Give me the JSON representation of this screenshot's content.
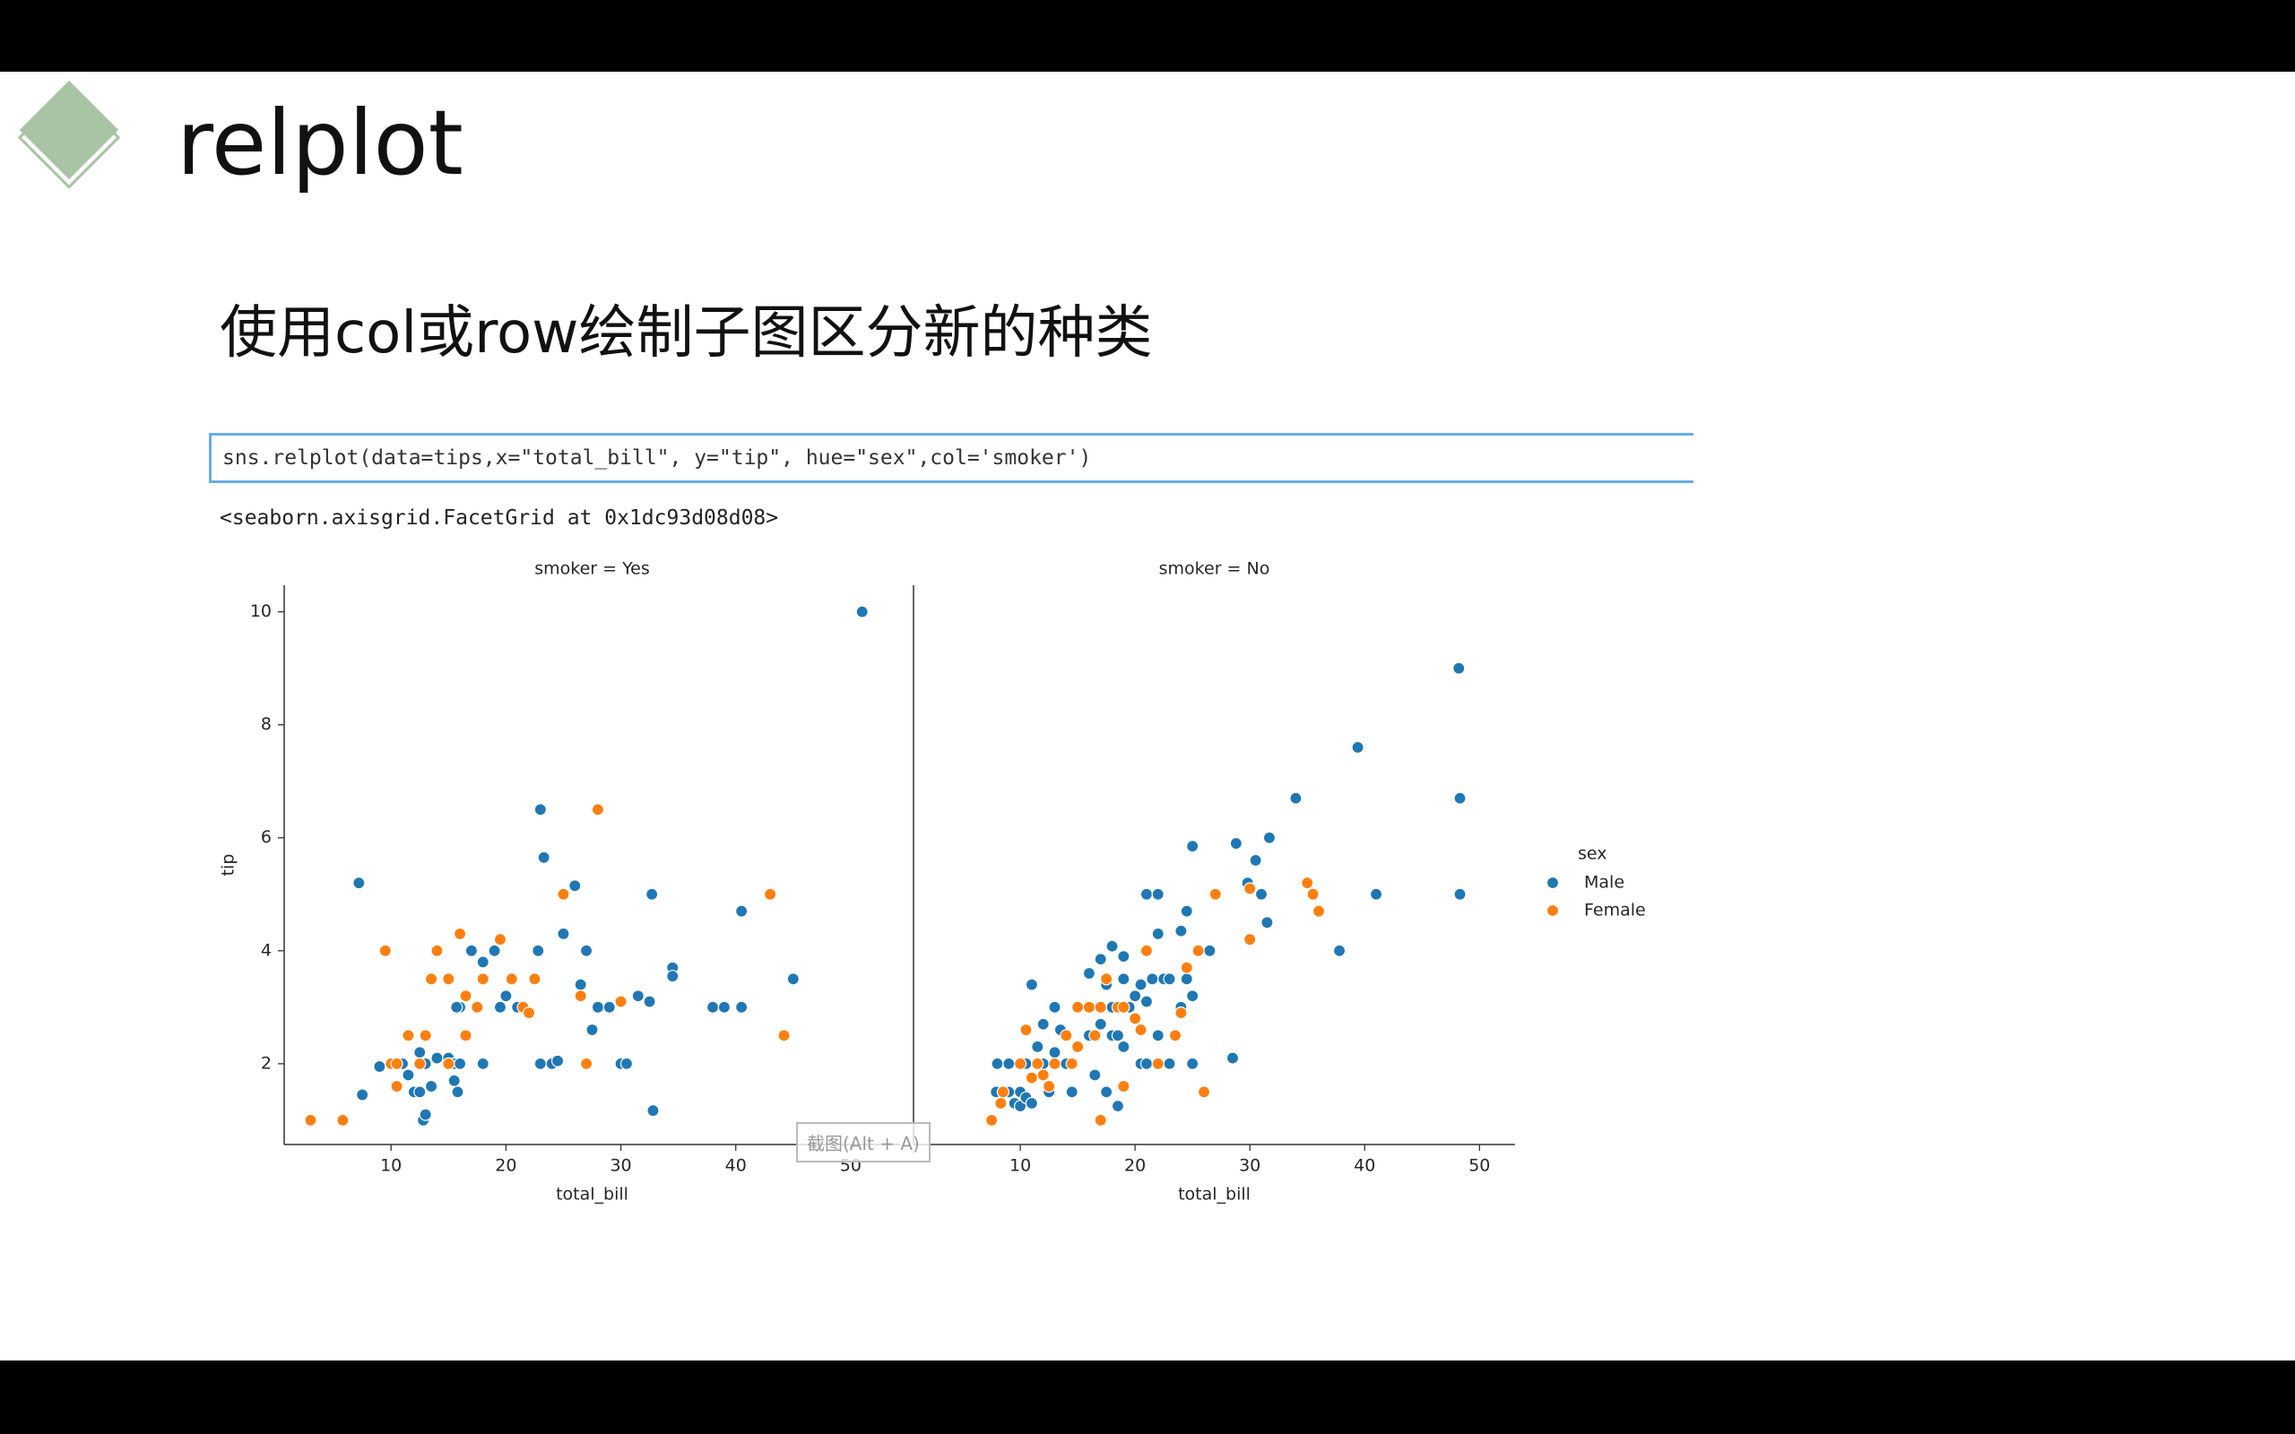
{
  "title": "relplot",
  "subtitle": "使用col或row绘制子图区分新的种类",
  "code": "sns.relplot(data=tips,x=\"total_bill\", y=\"tip\", hue=\"sex\",col='smoker')",
  "output": "<seaborn.axisgrid.FacetGrid at 0x1dc93d08d08>",
  "tooltip": "截图(Alt + A)",
  "chart_data": [
    {
      "type": "scatter",
      "title": "smoker = Yes",
      "xlabel": "total_bill",
      "ylabel": "tip",
      "xlim": [
        0.7,
        54.3
      ],
      "ylim": [
        0.57,
        10.47
      ],
      "xticks": [
        10,
        20,
        30,
        40,
        50
      ],
      "yticks": [
        2,
        4,
        6,
        8,
        10
      ],
      "series": [
        {
          "color": "#1f77b4",
          "x": [
            7.2,
            51,
            23,
            23.3,
            26,
            25,
            32.7,
            40.5,
            45,
            34.5,
            34.5,
            22.8,
            27,
            19,
            18,
            16,
            16.5,
            17,
            20,
            21,
            19.5,
            15.7,
            26.5,
            28,
            29,
            27.5,
            31.5,
            32.5,
            38,
            39,
            40.5,
            30,
            30.5,
            23,
            24,
            24.5,
            18,
            13,
            14,
            15,
            15.5,
            16,
            12.5,
            11,
            11.5,
            12,
            12.5,
            13.5,
            15.5,
            15.8,
            9,
            7.5,
            12.8,
            32.8,
            13
          ],
          "values": [
            5.2,
            10,
            6.5,
            5.65,
            5.15,
            4.3,
            5.0,
            4.7,
            3.5,
            3.7,
            3.55,
            4.0,
            4.0,
            4.0,
            3.8,
            3.0,
            3.2,
            4.0,
            3.2,
            3.0,
            3.0,
            3.0,
            3.4,
            3.0,
            3.0,
            2.6,
            3.2,
            3.1,
            3.0,
            3.0,
            3.0,
            2.0,
            2.0,
            2.0,
            2.0,
            2.05,
            2.0,
            2.0,
            2.1,
            2.1,
            2.0,
            2.0,
            2.2,
            2.0,
            1.8,
            1.5,
            1.5,
            1.6,
            1.7,
            1.5,
            1.95,
            1.45,
            1.0,
            1.17,
            1.1
          ]
        },
        {
          "color": "#ff7f0e",
          "x": [
            3,
            5.8,
            9.5,
            10,
            10.5,
            10.5,
            11.5,
            12.5,
            13,
            13.5,
            14,
            15,
            16,
            16.5,
            16.5,
            17.5,
            18,
            19.5,
            20.5,
            21.5,
            22,
            22.5,
            25,
            26.5,
            27,
            28,
            30,
            43,
            44.2,
            15
          ],
          "values": [
            1.0,
            1.0,
            4.0,
            2.0,
            2.0,
            1.6,
            2.5,
            2.0,
            2.5,
            3.5,
            4.0,
            2.0,
            4.3,
            2.5,
            3.2,
            3.0,
            3.5,
            4.2,
            3.5,
            3.0,
            2.9,
            3.5,
            5.0,
            3.2,
            2.0,
            6.5,
            3.1,
            5.0,
            2.5,
            3.5
          ]
        }
      ]
    },
    {
      "type": "scatter",
      "title": "smoker = No",
      "xlabel": "total_bill",
      "xlim": [
        0.7,
        53.1
      ],
      "ylim": [
        0.57,
        10.47
      ],
      "xticks": [
        10,
        20,
        30,
        40,
        50
      ],
      "legend_title": "sex",
      "series": [
        {
          "name": "Male",
          "color": "#1f77b4",
          "x": [
            48.2,
            39.4,
            34,
            48.3,
            31.7,
            28.8,
            25,
            30.5,
            29.8,
            31,
            41,
            48.3,
            21,
            22,
            24.5,
            24,
            22,
            26.5,
            37.8,
            31.5,
            18,
            17,
            19,
            16,
            17.5,
            19,
            20.5,
            21.5,
            22.5,
            23,
            24.5,
            25,
            20,
            21,
            19.5,
            18,
            15,
            13,
            12,
            13.5,
            16,
            17,
            18,
            19,
            18.5,
            20.5,
            21,
            23,
            25,
            28.5,
            22,
            24,
            11,
            10.5,
            11.5,
            12,
            8,
            9,
            7.9,
            9,
            10,
            9.5,
            10,
            10.5,
            11,
            12.5,
            14.5,
            17.5,
            18.5,
            11.5,
            13,
            14,
            16.5
          ],
          "values": [
            9.0,
            7.6,
            6.7,
            6.7,
            6.0,
            5.9,
            5.85,
            5.6,
            5.2,
            5.0,
            5.0,
            5.0,
            5.0,
            5.0,
            4.7,
            4.35,
            4.3,
            4.0,
            4.0,
            4.5,
            4.08,
            3.85,
            3.9,
            3.6,
            3.4,
            3.5,
            3.4,
            3.5,
            3.5,
            3.5,
            3.5,
            3.2,
            3.2,
            3.1,
            3.0,
            3.0,
            3.0,
            3.0,
            2.7,
            2.6,
            2.5,
            2.7,
            2.5,
            2.3,
            2.5,
            2.0,
            2.0,
            2.0,
            2.0,
            2.1,
            2.5,
            3.0,
            3.4,
            2.0,
            2.0,
            2.0,
            2.0,
            2.0,
            1.5,
            1.5,
            1.5,
            1.3,
            1.25,
            1.4,
            1.3,
            1.5,
            1.5,
            1.5,
            1.25,
            2.3,
            2.2,
            2.0,
            1.8
          ]
        },
        {
          "name": "Female",
          "color": "#ff7f0e",
          "x": [
            7.5,
            8.3,
            8.5,
            10,
            10.5,
            11,
            11.5,
            12,
            12.5,
            13,
            14,
            15,
            15,
            16,
            17,
            16.5,
            17.5,
            18.5,
            19,
            20,
            20.5,
            22,
            23.5,
            24,
            24.5,
            25.5,
            26,
            27,
            30,
            30,
            35,
            35.5,
            36,
            17,
            19,
            14.5,
            21
          ],
          "values": [
            1.0,
            1.3,
            1.5,
            2.0,
            2.6,
            1.75,
            2.0,
            1.8,
            1.6,
            2.0,
            2.5,
            2.3,
            3.0,
            3.0,
            3.0,
            2.5,
            3.5,
            3.0,
            3.0,
            2.8,
            2.6,
            2.0,
            2.5,
            2.9,
            3.7,
            4.0,
            1.5,
            5.0,
            4.2,
            5.1,
            5.2,
            5.0,
            4.7,
            1.0,
            1.6,
            2.0,
            4.0
          ]
        }
      ]
    }
  ]
}
